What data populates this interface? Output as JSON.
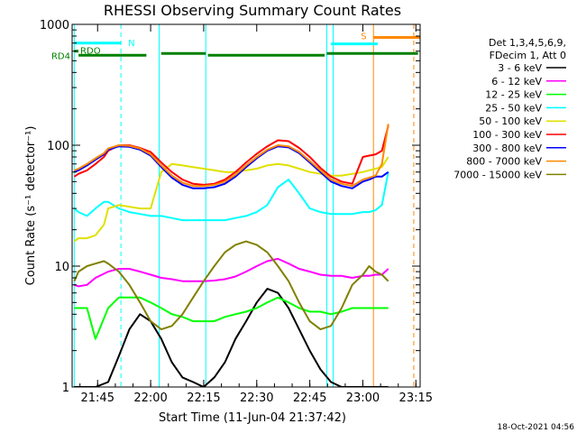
{
  "chart_data": {
    "type": "line",
    "title": "RHESSI Observing Summary Count Rates",
    "xlabel": "Start Time (11-Jun-04 21:37:42)",
    "ylabel": "Count Rate (s⁻¹ detector⁻¹)",
    "ylog": true,
    "ylim": [
      1,
      1000
    ],
    "xlim_minutes": [
      21.63,
      23.27
    ],
    "x_ticks": [
      {
        "minute": 21.75,
        "label": "21:45"
      },
      {
        "minute": 22.0,
        "label": "22:00"
      },
      {
        "minute": 22.25,
        "label": "22:15"
      },
      {
        "minute": 22.5,
        "label": "22:30"
      },
      {
        "minute": 22.75,
        "label": "22:45"
      },
      {
        "minute": 23.0,
        "label": "23:00"
      },
      {
        "minute": 23.25,
        "label": "23:15"
      }
    ],
    "y_ticks": [
      {
        "value": 1,
        "label": "1"
      },
      {
        "value": 10,
        "label": "10"
      },
      {
        "value": 100,
        "label": "100"
      },
      {
        "value": 1000,
        "label": "1000"
      }
    ],
    "legend": {
      "header": [
        "Det 1,3,4,5,6,9,",
        "FDecim 1, Att 0"
      ],
      "position": "right"
    },
    "series": [
      {
        "name": "3 - 6 keV",
        "color": "#000000",
        "x": [
          21.64,
          21.66,
          21.7,
          21.74,
          21.8,
          21.85,
          21.9,
          21.95,
          22.0,
          22.05,
          22.1,
          22.15,
          22.2,
          22.25,
          22.3,
          22.35,
          22.4,
          22.45,
          22.5,
          22.55,
          22.6,
          22.65,
          22.7,
          22.75,
          22.8,
          22.85,
          22.9,
          22.95,
          23.0,
          23.03,
          23.06,
          23.09,
          23.12
        ],
        "y": [
          1,
          1,
          1,
          1,
          1.1,
          1.8,
          3.0,
          4.0,
          3.5,
          2.5,
          1.6,
          1.2,
          1.1,
          1.0,
          1.2,
          1.6,
          2.5,
          3.5,
          5.0,
          6.5,
          6.0,
          4.5,
          3.0,
          2.0,
          1.4,
          1.1,
          1,
          1,
          1,
          1,
          1,
          1,
          1
        ]
      },
      {
        "name": "6 - 12 keV",
        "color": "#ff00ff",
        "x": [
          21.64,
          21.66,
          21.7,
          21.74,
          21.8,
          21.85,
          21.9,
          21.95,
          22.0,
          22.05,
          22.1,
          22.15,
          22.2,
          22.25,
          22.3,
          22.35,
          22.4,
          22.45,
          22.5,
          22.55,
          22.6,
          22.65,
          22.7,
          22.75,
          22.8,
          22.85,
          22.9,
          22.95,
          23.0,
          23.03,
          23.06,
          23.09,
          23.12
        ],
        "y": [
          7,
          6.8,
          7,
          8,
          9,
          9.5,
          9.5,
          9.0,
          8.5,
          8.0,
          7.8,
          7.5,
          7.5,
          7.5,
          7.6,
          7.8,
          8.2,
          9.0,
          10,
          11,
          11.5,
          10.5,
          9.5,
          9,
          8.5,
          8.3,
          8.3,
          8.0,
          8.3,
          8.3,
          8.5,
          8.5,
          9.5
        ]
      },
      {
        "name": "12 - 25 keV",
        "color": "#00ff00",
        "x": [
          21.64,
          21.66,
          21.7,
          21.74,
          21.8,
          21.85,
          21.9,
          21.95,
          22.0,
          22.05,
          22.1,
          22.15,
          22.2,
          22.25,
          22.3,
          22.35,
          22.4,
          22.45,
          22.5,
          22.55,
          22.6,
          22.65,
          22.7,
          22.75,
          22.8,
          22.85,
          22.9,
          22.95,
          23.0,
          23.03,
          23.06,
          23.09,
          23.12
        ],
        "y": [
          4.5,
          4.5,
          4.5,
          2.5,
          4.5,
          5.5,
          5.5,
          5.5,
          5.0,
          4.5,
          4.0,
          3.8,
          3.5,
          3.5,
          3.5,
          3.8,
          4.0,
          4.2,
          4.5,
          5.0,
          5.5,
          5.0,
          4.5,
          4.2,
          4.2,
          4.0,
          4.2,
          4.5,
          4.5,
          4.5,
          4.5,
          4.5,
          4.5
        ]
      },
      {
        "name": "25 - 50 keV",
        "color": "#00ffff",
        "x": [
          21.64,
          21.66,
          21.7,
          21.74,
          21.78,
          21.8,
          21.85,
          21.9,
          21.95,
          22.0,
          22.05,
          22.1,
          22.15,
          22.2,
          22.25,
          22.3,
          22.35,
          22.4,
          22.45,
          22.5,
          22.55,
          22.6,
          22.65,
          22.7,
          22.75,
          22.8,
          22.85,
          22.9,
          22.95,
          23.0,
          23.03,
          23.06,
          23.09,
          23.12
        ],
        "y": [
          30,
          28,
          26,
          30,
          34,
          34,
          30,
          28,
          27,
          26,
          26,
          25,
          24,
          24,
          24,
          24,
          24,
          25,
          26,
          28,
          32,
          45,
          52,
          40,
          30,
          28,
          27,
          27,
          27,
          28,
          28,
          29,
          32,
          60
        ]
      },
      {
        "name": "50 - 100 keV",
        "color": "#e0e000",
        "x": [
          21.64,
          21.66,
          21.7,
          21.74,
          21.78,
          21.8,
          21.85,
          21.9,
          21.95,
          22.0,
          22.05,
          22.1,
          22.15,
          22.2,
          22.25,
          22.3,
          22.35,
          22.4,
          22.45,
          22.5,
          22.55,
          22.6,
          22.65,
          22.7,
          22.75,
          22.8,
          22.85,
          22.9,
          22.95,
          23.0,
          23.03,
          23.06,
          23.09,
          23.12
        ],
        "y": [
          16,
          17,
          17,
          18,
          22,
          30,
          32,
          31,
          30,
          30,
          60,
          70,
          68,
          66,
          64,
          62,
          60,
          60,
          62,
          64,
          68,
          70,
          68,
          64,
          60,
          58,
          56,
          56,
          58,
          60,
          62,
          64,
          66,
          80
        ]
      },
      {
        "name": "100 - 300 keV",
        "color": "#ff0000",
        "x": [
          21.64,
          21.66,
          21.7,
          21.74,
          21.78,
          21.8,
          21.85,
          21.9,
          21.95,
          22.0,
          22.05,
          22.1,
          22.15,
          22.2,
          22.25,
          22.3,
          22.35,
          22.4,
          22.45,
          22.5,
          22.55,
          22.6,
          22.65,
          22.7,
          22.75,
          22.8,
          22.85,
          22.9,
          22.95,
          23.0,
          23.03,
          23.06,
          23.09,
          23.12
        ],
        "y": [
          55,
          58,
          62,
          70,
          80,
          90,
          100,
          100,
          95,
          88,
          72,
          60,
          52,
          48,
          47,
          48,
          52,
          60,
          72,
          85,
          98,
          110,
          108,
          95,
          80,
          65,
          55,
          50,
          48,
          80,
          82,
          84,
          90,
          145
        ]
      },
      {
        "name": "300 - 800 keV",
        "color": "#0000ff",
        "x": [
          21.64,
          21.66,
          21.7,
          21.74,
          21.78,
          21.8,
          21.85,
          21.9,
          21.95,
          22.0,
          22.05,
          22.1,
          22.15,
          22.2,
          22.25,
          22.3,
          22.35,
          22.4,
          22.45,
          22.5,
          22.55,
          22.6,
          22.65,
          22.7,
          22.75,
          22.8,
          22.85,
          22.9,
          22.95,
          23.0,
          23.03,
          23.06,
          23.09,
          23.12
        ],
        "y": [
          60,
          62,
          68,
          76,
          84,
          92,
          98,
          97,
          92,
          82,
          66,
          54,
          47,
          44,
          44,
          45,
          48,
          55,
          66,
          78,
          90,
          98,
          96,
          86,
          72,
          60,
          50,
          46,
          44,
          50,
          52,
          55,
          55,
          60
        ]
      },
      {
        "name": "800 - 7000 keV",
        "color": "#ff8800",
        "x": [
          21.64,
          21.66,
          21.7,
          21.74,
          21.78,
          21.8,
          21.85,
          21.9,
          21.95,
          22.0,
          22.05,
          22.1,
          22.15,
          22.2,
          22.25,
          22.3,
          22.35,
          22.4,
          22.45,
          22.5,
          22.55,
          22.6,
          22.65,
          22.7,
          22.75,
          22.8,
          22.85,
          22.9,
          22.95,
          23.0,
          23.03,
          23.06,
          23.09,
          23.12
        ],
        "y": [
          62,
          64,
          70,
          78,
          86,
          94,
          100,
          99,
          94,
          84,
          68,
          56,
          49,
          46,
          46,
          47,
          50,
          57,
          68,
          80,
          92,
          100,
          98,
          88,
          74,
          62,
          52,
          48,
          46,
          52,
          54,
          56,
          70,
          150
        ]
      },
      {
        "name": "7000 - 15000 keV",
        "color": "#808000",
        "x": [
          21.64,
          21.66,
          21.7,
          21.74,
          21.78,
          21.8,
          21.85,
          21.9,
          21.95,
          22.0,
          22.05,
          22.1,
          22.15,
          22.2,
          22.25,
          22.3,
          22.35,
          22.4,
          22.45,
          22.5,
          22.55,
          22.6,
          22.65,
          22.7,
          22.75,
          22.8,
          22.85,
          22.9,
          22.95,
          23.0,
          23.03,
          23.06,
          23.09,
          23.12
        ],
        "y": [
          7.5,
          9,
          10,
          10.5,
          11,
          10.5,
          9.0,
          7.0,
          5.0,
          3.5,
          3.0,
          3.2,
          4.0,
          5.5,
          7.5,
          10,
          13,
          15,
          16,
          15,
          13,
          10,
          7.5,
          5.0,
          3.5,
          3.0,
          3.2,
          4.5,
          7,
          8.5,
          10,
          9,
          8.5,
          7.5
        ]
      }
    ],
    "annotations": [
      {
        "label": "N",
        "color": "#00ffff",
        "y_level": 700,
        "x_range": [
          21.64,
          21.86
        ]
      },
      {
        "label": "RDO",
        "color": "#008000",
        "y_level": 600,
        "x_range": [
          21.64,
          21.66
        ]
      },
      {
        "label": "RD4",
        "color": "#008000",
        "y_level": 555,
        "x_range": [
          21.66,
          21.98
        ]
      },
      {
        "label": "",
        "color": "#008000",
        "y_level": 575,
        "x_range": [
          22.05,
          22.26
        ]
      },
      {
        "label": "",
        "color": "#008000",
        "y_level": 555,
        "x_range": [
          22.27,
          22.82
        ]
      },
      {
        "label": "",
        "color": "#008000",
        "y_level": 575,
        "x_range": [
          22.83,
          23.26
        ]
      },
      {
        "label": "",
        "color": "#00ffff",
        "y_level": 690,
        "x_range": [
          22.85,
          23.07
        ]
      },
      {
        "label": "S",
        "color": "#ff8800",
        "y_level": 780,
        "x_range": [
          23.05,
          23.27
        ]
      }
    ],
    "vlines": [
      {
        "minute": 21.64,
        "color": "#00ffff",
        "dashed": false
      },
      {
        "minute": 21.86,
        "color": "#00ffff",
        "dashed": true
      },
      {
        "minute": 22.04,
        "color": "#00ffff",
        "dashed": false
      },
      {
        "minute": 22.26,
        "color": "#00ffff",
        "dashed": false
      },
      {
        "minute": 22.83,
        "color": "#00ffff",
        "dashed": false
      },
      {
        "minute": 22.86,
        "color": "#00ffff",
        "dashed": false
      },
      {
        "minute": 23.05,
        "color": "#ff8800",
        "dashed": false
      },
      {
        "minute": 23.24,
        "color": "#ff8800",
        "dashed": true
      }
    ]
  },
  "timestamp": "18-Oct-2021 04:56"
}
